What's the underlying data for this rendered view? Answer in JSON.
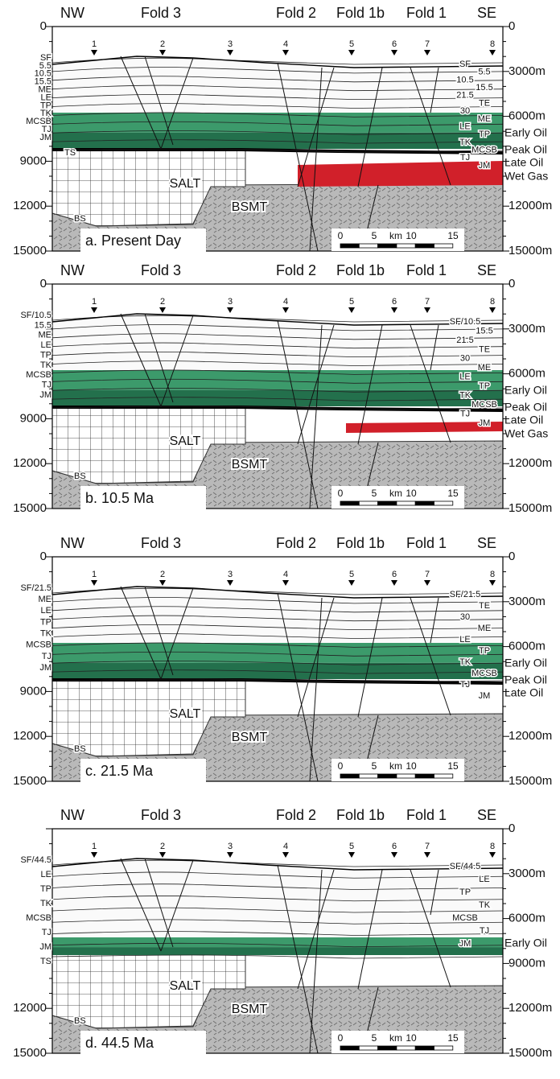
{
  "panels": [
    {
      "header": [
        "NW",
        "Fold 3",
        "Fold 2",
        "Fold 1b",
        "Fold 1",
        "SE"
      ],
      "left_ticks": [
        "0",
        "9000",
        "12000",
        "15000"
      ],
      "right_ticks": [
        "0",
        "3000m",
        "6000m",
        "12000m",
        "15000m"
      ],
      "wells": [
        "1",
        "2",
        "3",
        "4",
        "5",
        "6",
        "7",
        "8"
      ],
      "left_layers": [
        "SF",
        "5.5",
        "10.5",
        "15.5",
        "ME",
        "LE",
        "TP",
        "TK",
        "MCSB",
        "TJ",
        "JM"
      ],
      "right_layers": [
        "SF",
        "5.5",
        "10.5",
        "15.5",
        "21.5",
        "TE",
        "30",
        "ME",
        "LE",
        "TP",
        "TK",
        "MCSB",
        "TJ",
        "JM"
      ],
      "zones": [
        "Early Oil",
        "Peak Oil",
        "Late Oil",
        "Wet Gas"
      ],
      "salt": "SALT",
      "bsmt": "BSMT",
      "bs": "BS",
      "ts": "TS",
      "label": "a. Present Day",
      "scale": [
        "0",
        "5",
        "km",
        "10",
        "15"
      ]
    },
    {
      "header": [
        "NW",
        "Fold 3",
        "Fold 2",
        "Fold 1b",
        "Fold 1",
        "SE"
      ],
      "left_ticks": [
        "0",
        "9000",
        "12000",
        "15000"
      ],
      "right_ticks": [
        "0",
        "3000m",
        "6000m",
        "12000m",
        "15000m"
      ],
      "wells": [
        "1",
        "2",
        "3",
        "4",
        "5",
        "6",
        "7",
        "8"
      ],
      "left_layers": [
        "SF/10.5",
        "15.5",
        "ME",
        "LE",
        "TP",
        "TK",
        "MCSB",
        "TJ",
        "JM"
      ],
      "right_layers": [
        "SF/10.5",
        "15.5",
        "21.5",
        "TE",
        "30",
        "ME",
        "LE",
        "TP",
        "TK",
        "MCSB",
        "TJ",
        "JM"
      ],
      "zones": [
        "Early Oil",
        "Peak Oil",
        "Late Oil",
        "Wet Gas"
      ],
      "salt": "SALT",
      "bsmt": "BSMT",
      "bs": "BS",
      "label": "b. 10.5 Ma",
      "scale": [
        "0",
        "5",
        "km",
        "10",
        "15"
      ]
    },
    {
      "header": [
        "NW",
        "Fold 3",
        "Fold 2",
        "Fold 1b",
        "Fold 1",
        "SE"
      ],
      "left_ticks": [
        "0",
        "9000",
        "12000",
        "15000"
      ],
      "right_ticks": [
        "0",
        "3000m",
        "6000m",
        "12000m",
        "15000m"
      ],
      "wells": [
        "1",
        "2",
        "3",
        "4",
        "5",
        "6",
        "7",
        "8"
      ],
      "left_layers": [
        "SF/21.5",
        "ME",
        "LE",
        "TP",
        "TK",
        "MCSB",
        "TJ",
        "JM"
      ],
      "right_layers": [
        "SF/21.5",
        "TE",
        "30",
        "ME",
        "LE",
        "TP",
        "TK",
        "MCSB",
        "TJ",
        "JM"
      ],
      "zones": [
        "Early Oil",
        "Peak Oil",
        "Late Oil"
      ],
      "salt": "SALT",
      "bsmt": "BSMT",
      "bs": "BS",
      "label": "c. 21.5 Ma",
      "scale": [
        "0",
        "5",
        "km",
        "10",
        "15"
      ]
    },
    {
      "header": [
        "NW",
        "Fold 3",
        "Fold 2",
        "Fold 1b",
        "Fold 1",
        "SE"
      ],
      "left_ticks": [
        "12000",
        "15000"
      ],
      "right_ticks": [
        "0",
        "3000m",
        "6000m",
        "9000m",
        "12000m",
        "15000m"
      ],
      "wells": [
        "1",
        "2",
        "3",
        "4",
        "5",
        "6",
        "7",
        "8"
      ],
      "left_layers": [
        "SF/44.5",
        "LE",
        "TP",
        "TK",
        "MCSB",
        "TJ",
        "JM",
        "TS"
      ],
      "right_layers": [
        "SF/44.5",
        "LE",
        "TP",
        "TK",
        "MCSB",
        "TJ",
        "JM"
      ],
      "zones": [
        "Early Oil"
      ],
      "salt": "SALT",
      "bsmt": "BSMT",
      "bs": "BS",
      "label": "d. 44.5 Ma",
      "scale": [
        "0",
        "5",
        "km",
        "10",
        "15"
      ]
    }
  ]
}
